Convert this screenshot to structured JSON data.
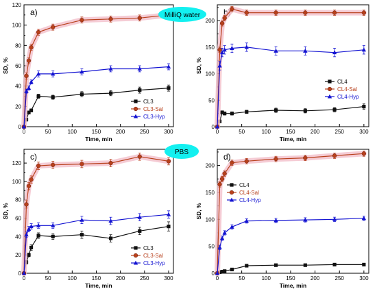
{
  "figure": {
    "badges": [
      {
        "text": "MilliQ water",
        "color": "#13f0f0",
        "panel": 0
      },
      {
        "text": "PBS",
        "color": "#13f0f0",
        "panel": 2
      }
    ]
  },
  "chart_data": [
    {
      "type": "line",
      "panel_label": "a)",
      "xlabel": "Time, min",
      "ylabel": "SD, %",
      "xlim": [
        0,
        310
      ],
      "ylim": [
        0,
        120
      ],
      "xticks": [
        0,
        50,
        100,
        150,
        200,
        250,
        300
      ],
      "yticks": [
        0,
        10,
        20,
        30,
        40,
        50,
        60,
        70,
        80,
        90,
        100,
        110,
        120
      ],
      "ytick_labels_every": 2,
      "legend": {
        "position": "bottom-right",
        "entries": [
          "CL3",
          "CL3-Sal",
          "CL3-Hyp"
        ]
      },
      "series": [
        {
          "name": "CL3",
          "color": "#111111",
          "marker": "square",
          "x": [
            0,
            5,
            10,
            15,
            30,
            60,
            120,
            180,
            240,
            300
          ],
          "y": [
            0,
            7,
            14,
            16,
            30,
            29,
            32,
            33,
            36,
            38
          ],
          "err": [
            0,
            1.5,
            1.5,
            1.5,
            2,
            2,
            2.5,
            2.5,
            3,
            3
          ]
        },
        {
          "name": "CL3-Sal",
          "color": "#b8401c",
          "marker": "circle",
          "band": "#f3bfca",
          "x": [
            0,
            5,
            10,
            15,
            30,
            60,
            120,
            180,
            240,
            300
          ],
          "y": [
            0,
            50,
            65,
            78,
            93,
            98,
            105,
            106,
            107,
            110
          ],
          "err": [
            0,
            3,
            3,
            3,
            3,
            3,
            3,
            3,
            3,
            3
          ]
        },
        {
          "name": "CL3-Hyp",
          "color": "#1414d2",
          "marker": "triangle",
          "x": [
            0,
            5,
            10,
            15,
            30,
            60,
            120,
            180,
            240,
            300
          ],
          "y": [
            0,
            35,
            38,
            44,
            52,
            52,
            54,
            57,
            57,
            59
          ],
          "err": [
            0,
            2,
            2,
            2,
            3,
            3,
            3,
            3,
            3,
            3
          ]
        }
      ]
    },
    {
      "type": "line",
      "panel_label": "b)",
      "xlabel": "Time, min",
      "ylabel": "SD, %",
      "xlim": [
        0,
        310
      ],
      "ylim": [
        0,
        230
      ],
      "xticks": [
        0,
        50,
        100,
        150,
        200,
        250,
        300
      ],
      "yticks": [
        0,
        25,
        50,
        75,
        100,
        125,
        150,
        175,
        200,
        225
      ],
      "ytick_labels_every": 2,
      "legend": {
        "position": "middle-right",
        "entries": [
          "CL4",
          "CL4-Sal",
          "CL4-Hyp"
        ]
      },
      "series": [
        {
          "name": "CL4",
          "color": "#111111",
          "marker": "square",
          "x": [
            0,
            5,
            10,
            15,
            30,
            60,
            120,
            180,
            240,
            300
          ],
          "y": [
            0,
            10,
            27,
            25,
            25,
            28,
            31,
            30,
            32,
            38
          ],
          "err": [
            0,
            2,
            3,
            3,
            3,
            3,
            4,
            4,
            4,
            5
          ]
        },
        {
          "name": "CL4-Sal",
          "color": "#b8401c",
          "marker": "circle",
          "band": "#f3bfca",
          "x": [
            0,
            5,
            10,
            15,
            30,
            60,
            120,
            180,
            240,
            300
          ],
          "y": [
            0,
            145,
            195,
            205,
            222,
            215,
            215,
            215,
            215,
            215
          ],
          "err": [
            0,
            5,
            5,
            5,
            5,
            5,
            5,
            5,
            5,
            5
          ]
        },
        {
          "name": "CL4-Hyp",
          "color": "#1414d2",
          "marker": "triangle",
          "x": [
            0,
            5,
            10,
            15,
            30,
            60,
            120,
            180,
            240,
            300
          ],
          "y": [
            0,
            115,
            140,
            145,
            148,
            150,
            143,
            143,
            140,
            145
          ],
          "err": [
            0,
            8,
            8,
            8,
            8,
            8,
            8,
            8,
            8,
            8
          ]
        }
      ]
    },
    {
      "type": "line",
      "panel_label": "c)",
      "xlabel": "Time, min",
      "ylabel": "SD, %",
      "xlim": [
        0,
        310
      ],
      "ylim": [
        0,
        135
      ],
      "xticks": [
        0,
        50,
        100,
        150,
        200,
        250,
        300
      ],
      "yticks": [
        0,
        10,
        20,
        30,
        40,
        50,
        60,
        70,
        80,
        90,
        100,
        110,
        120,
        130
      ],
      "ytick_labels_every": 2,
      "legend": {
        "position": "bottom-right",
        "entries": [
          "CL3",
          "CL3-Sal",
          "CL3-Hyp"
        ]
      },
      "series": [
        {
          "name": "CL3",
          "color": "#111111",
          "marker": "square",
          "x": [
            0,
            5,
            10,
            15,
            30,
            60,
            120,
            180,
            240,
            300
          ],
          "y": [
            0,
            12,
            20,
            28,
            41,
            40,
            42,
            38,
            46,
            51
          ],
          "err": [
            0,
            2,
            2,
            3,
            3,
            3,
            4,
            4,
            4,
            5
          ]
        },
        {
          "name": "CL3-Sal",
          "color": "#b8401c",
          "marker": "circle",
          "band": "#f3bfca",
          "x": [
            0,
            5,
            10,
            15,
            30,
            60,
            120,
            180,
            240,
            300
          ],
          "y": [
            0,
            75,
            95,
            102,
            117,
            118,
            119,
            120,
            127,
            122
          ],
          "err": [
            0,
            4,
            4,
            4,
            4,
            4,
            4,
            4,
            4,
            4
          ]
        },
        {
          "name": "CL3-Hyp",
          "color": "#1414d2",
          "marker": "triangle",
          "x": [
            0,
            5,
            10,
            15,
            30,
            60,
            120,
            180,
            240,
            300
          ],
          "y": [
            0,
            42,
            48,
            51,
            52,
            52,
            58,
            57,
            61,
            64
          ],
          "err": [
            0,
            3,
            3,
            3,
            3,
            3,
            4,
            4,
            4,
            4
          ]
        }
      ]
    },
    {
      "type": "line",
      "panel_label": "d)",
      "xlabel": "Time, min",
      "ylabel": "SD, %",
      "xlim": [
        0,
        310
      ],
      "ylim": [
        0,
        230
      ],
      "xticks": [
        0,
        50,
        100,
        150,
        200,
        250,
        300
      ],
      "yticks": [
        0,
        25,
        50,
        75,
        100,
        125,
        150,
        175,
        200,
        225
      ],
      "ytick_labels_every": 2,
      "legend": {
        "position": "middle-left",
        "entries": [
          "CL4",
          "CL4-Sal",
          "CL4-Hyp"
        ]
      },
      "series": [
        {
          "name": "CL4",
          "color": "#111111",
          "marker": "square",
          "x": [
            0,
            5,
            10,
            15,
            30,
            60,
            120,
            180,
            240,
            300
          ],
          "y": [
            0,
            2,
            3,
            4,
            7,
            14,
            15,
            15,
            16,
            16
          ],
          "err": [
            0,
            1,
            1,
            1,
            2,
            2,
            2,
            2,
            2,
            2
          ]
        },
        {
          "name": "CL4-Sal",
          "color": "#b8401c",
          "marker": "circle",
          "band": "#f3bfca",
          "x": [
            0,
            5,
            10,
            15,
            30,
            60,
            120,
            180,
            240,
            300
          ],
          "y": [
            0,
            165,
            175,
            185,
            205,
            208,
            212,
            214,
            218,
            222
          ],
          "err": [
            0,
            5,
            5,
            5,
            5,
            5,
            5,
            5,
            5,
            5
          ]
        },
        {
          "name": "CL4-Hyp",
          "color": "#1414d2",
          "marker": "triangle",
          "x": [
            0,
            5,
            10,
            15,
            30,
            60,
            120,
            180,
            240,
            300
          ],
          "y": [
            0,
            48,
            65,
            75,
            86,
            97,
            98,
            99,
            100,
            102
          ],
          "err": [
            0,
            4,
            4,
            4,
            4,
            4,
            4,
            4,
            4,
            4
          ]
        }
      ]
    }
  ]
}
